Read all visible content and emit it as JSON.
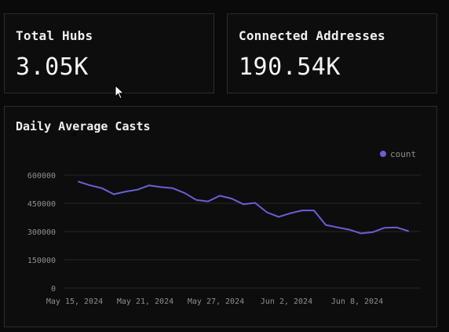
{
  "stats": {
    "hubs": {
      "label": "Total Hubs",
      "value": "3.05K"
    },
    "addresses": {
      "label": "Connected Addresses",
      "value": "190.54K"
    }
  },
  "chart": {
    "title": "Daily Average Casts"
  },
  "chart_data": {
    "type": "line",
    "legend_position": "top-right",
    "grid": true,
    "ylim": [
      0,
      600000
    ],
    "y_ticks": [
      "0",
      "150000",
      "300000",
      "450000",
      "600000"
    ],
    "x_tick_labels": [
      "May 15, 2024",
      "May 21, 2024",
      "May 27, 2024",
      "Jun 2, 2024",
      "Jun 8, 2024"
    ],
    "x": [
      "2024-05-15",
      "2024-05-16",
      "2024-05-17",
      "2024-05-18",
      "2024-05-19",
      "2024-05-20",
      "2024-05-21",
      "2024-05-22",
      "2024-05-23",
      "2024-05-24",
      "2024-05-25",
      "2024-05-26",
      "2024-05-27",
      "2024-05-28",
      "2024-05-29",
      "2024-05-30",
      "2024-05-31",
      "2024-06-01",
      "2024-06-02",
      "2024-06-03",
      "2024-06-04",
      "2024-06-05",
      "2024-06-06",
      "2024-06-07",
      "2024-06-08",
      "2024-06-09",
      "2024-06-10",
      "2024-06-11",
      "2024-06-12"
    ],
    "series": [
      {
        "name": "count",
        "color": "#6b5fd6",
        "values": [
          565000,
          545000,
          530000,
          498000,
          512000,
          522000,
          545000,
          536000,
          530000,
          505000,
          468000,
          460000,
          490000,
          475000,
          445000,
          452000,
          402000,
          378000,
          397000,
          412000,
          412000,
          335000,
          322000,
          310000,
          290000,
          297000,
          320000,
          322000,
          303000
        ]
      }
    ]
  },
  "colors": {
    "background": "#0a0a0a",
    "card_border": "#2c2c2c",
    "series": "#6b5fd6",
    "axis_text": "#8f8f8f"
  }
}
